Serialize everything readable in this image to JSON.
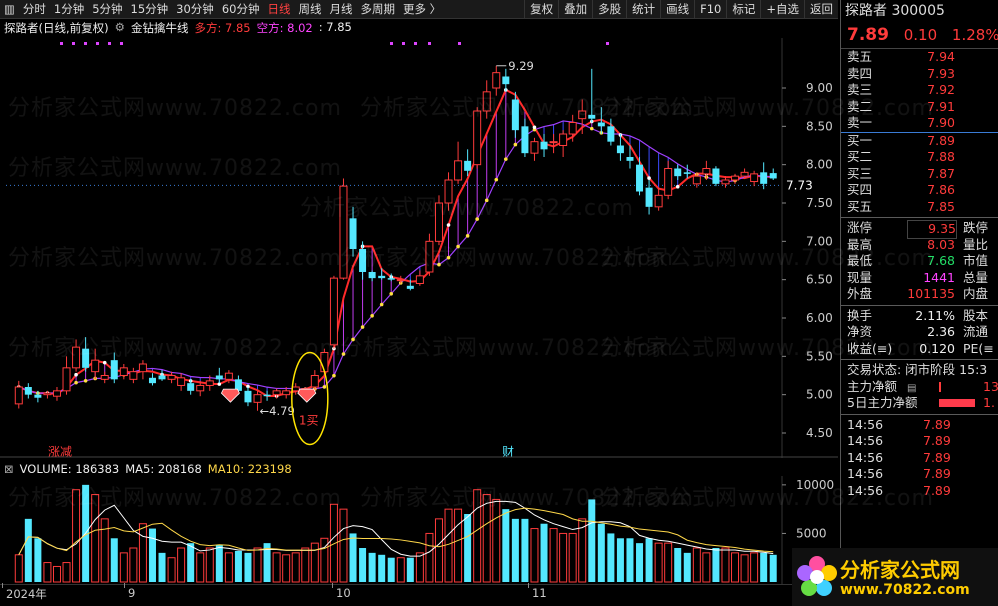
{
  "toolbar": {
    "items": [
      "分时",
      "1分钟",
      "5分钟",
      "15分钟",
      "30分钟",
      "60分钟",
      "日线",
      "周线",
      "月线",
      "多周期",
      "更多 〉"
    ],
    "active_index": 6,
    "right_items": [
      "复权",
      "叠加",
      "多股",
      "统计",
      "画线",
      "F10",
      "标记",
      "+自选",
      "返回"
    ]
  },
  "info": {
    "stock_label": "探路者(日线,前复权)",
    "indicator": "金钻擒牛线",
    "long_label": "多方:",
    "long_value": "7.85",
    "short_label": "空方:",
    "short_value": "8.02",
    "extra_value": ": 7.85"
  },
  "chart_data": {
    "type": "candlestick",
    "price_axis": {
      "min": 4.5,
      "max": 9.0,
      "ticks": [
        "9.00",
        "8.50",
        "8.00",
        "7.50",
        "7.00",
        "6.50",
        "6.00",
        "5.50",
        "5.00",
        "4.50"
      ]
    },
    "current_price_tag": "7.73",
    "high_annotation": "9.29",
    "low_annotation": "4.79",
    "buy_label": "1买",
    "event_labels": [
      "涨减",
      "财"
    ],
    "x_labels": [
      "2024年",
      "9",
      "10",
      "11"
    ],
    "candles": [
      [
        4.88,
        5.18,
        4.82,
        5.1
      ],
      [
        5.1,
        5.15,
        4.95,
        5.0
      ],
      [
        5.0,
        5.05,
        4.9,
        4.96
      ],
      [
        5.0,
        5.05,
        4.95,
        5.02
      ],
      [
        4.98,
        5.1,
        4.92,
        5.05
      ],
      [
        5.05,
        5.5,
        5.0,
        5.35
      ],
      [
        5.35,
        5.72,
        5.3,
        5.62
      ],
      [
        5.6,
        5.75,
        5.3,
        5.35
      ],
      [
        5.3,
        5.6,
        5.2,
        5.45
      ],
      [
        5.2,
        5.3,
        5.15,
        5.25
      ],
      [
        5.45,
        5.55,
        5.15,
        5.2
      ],
      [
        5.25,
        5.4,
        5.2,
        5.35
      ],
      [
        5.2,
        5.35,
        5.15,
        5.3
      ],
      [
        5.3,
        5.45,
        5.2,
        5.4
      ],
      [
        5.22,
        5.28,
        5.12,
        5.15
      ],
      [
        5.25,
        5.32,
        5.18,
        5.2
      ],
      [
        5.2,
        5.3,
        5.15,
        5.25
      ],
      [
        5.12,
        5.28,
        5.05,
        5.22
      ],
      [
        5.15,
        5.2,
        5.0,
        5.05
      ],
      [
        5.05,
        5.18,
        4.98,
        5.12
      ],
      [
        5.12,
        5.25,
        5.05,
        5.18
      ],
      [
        5.25,
        5.35,
        5.15,
        5.2
      ],
      [
        5.2,
        5.32,
        5.15,
        5.28
      ],
      [
        5.2,
        5.25,
        5.0,
        5.05
      ],
      [
        5.05,
        5.1,
        4.85,
        4.9
      ],
      [
        4.9,
        5.05,
        4.79,
        5.0
      ],
      [
        5.0,
        5.05,
        4.92,
        4.98
      ],
      [
        5.0,
        5.08,
        4.95,
        5.05
      ],
      [
        5.0,
        5.1,
        4.95,
        5.05
      ],
      [
        5.05,
        5.15,
        5.0,
        5.1
      ],
      [
        5.02,
        5.1,
        4.98,
        5.08
      ],
      [
        5.1,
        5.32,
        5.05,
        5.25
      ],
      [
        5.3,
        5.6,
        5.25,
        5.55
      ],
      [
        5.65,
        6.55,
        5.6,
        6.52
      ],
      [
        6.52,
        7.82,
        6.5,
        7.72
      ],
      [
        7.3,
        7.45,
        6.8,
        6.9
      ],
      [
        6.9,
        7.0,
        6.5,
        6.6
      ],
      [
        6.6,
        6.62,
        6.48,
        6.52
      ],
      [
        6.55,
        6.65,
        6.5,
        6.52
      ],
      [
        6.52,
        6.58,
        6.48,
        6.5
      ],
      [
        6.5,
        6.55,
        6.45,
        6.5
      ],
      [
        6.42,
        6.5,
        6.36,
        6.38
      ],
      [
        6.45,
        6.62,
        6.42,
        6.55
      ],
      [
        6.6,
        7.1,
        6.55,
        7.0
      ],
      [
        7.0,
        7.6,
        6.95,
        7.5
      ],
      [
        7.5,
        7.9,
        7.4,
        7.8
      ],
      [
        7.8,
        8.3,
        7.75,
        8.05
      ],
      [
        8.05,
        8.2,
        7.85,
        7.92
      ],
      [
        8.0,
        8.75,
        7.95,
        8.7
      ],
      [
        8.7,
        9.1,
        8.6,
        8.95
      ],
      [
        9.0,
        9.29,
        8.9,
        9.2
      ],
      [
        9.15,
        9.25,
        8.95,
        9.05
      ],
      [
        8.85,
        8.95,
        8.35,
        8.45
      ],
      [
        8.5,
        8.6,
        8.1,
        8.15
      ],
      [
        8.15,
        8.35,
        8.05,
        8.3
      ],
      [
        8.3,
        8.4,
        8.1,
        8.2
      ],
      [
        8.3,
        8.4,
        8.15,
        8.3
      ],
      [
        8.25,
        8.45,
        8.1,
        8.4
      ],
      [
        8.4,
        8.65,
        8.3,
        8.55
      ],
      [
        8.6,
        8.85,
        8.4,
        8.7
      ],
      [
        8.65,
        9.25,
        8.55,
        8.6
      ],
      [
        8.55,
        8.75,
        8.4,
        8.5
      ],
      [
        8.5,
        8.6,
        8.25,
        8.3
      ],
      [
        8.25,
        8.4,
        8.05,
        8.15
      ],
      [
        8.1,
        8.25,
        7.95,
        8.05
      ],
      [
        8.0,
        8.1,
        7.6,
        7.65
      ],
      [
        7.7,
        7.8,
        7.35,
        7.45
      ],
      [
        7.45,
        7.7,
        7.4,
        7.6
      ],
      [
        7.6,
        8.05,
        7.55,
        7.95
      ],
      [
        7.95,
        8.0,
        7.8,
        7.85
      ],
      [
        7.9,
        8.0,
        7.82,
        7.88
      ],
      [
        7.75,
        7.9,
        7.7,
        7.85
      ],
      [
        7.88,
        8.05,
        7.8,
        7.95
      ],
      [
        7.95,
        7.98,
        7.72,
        7.75
      ],
      [
        7.75,
        7.85,
        7.7,
        7.8
      ],
      [
        7.8,
        7.88,
        7.75,
        7.85
      ],
      [
        7.85,
        7.95,
        7.82,
        7.9
      ],
      [
        7.78,
        7.92,
        7.72,
        7.88
      ],
      [
        7.9,
        8.03,
        7.68,
        7.75
      ],
      [
        7.89,
        7.95,
        7.8,
        7.82
      ]
    ],
    "volume": {
      "label": "VOLUME: 186383",
      "ma5": "MA5: 208168",
      "ma10": "MA10: 223198",
      "axis_ticks": [
        "10000",
        "5000"
      ],
      "values": [
        2.8,
        6.5,
        4.5,
        2.0,
        1.6,
        2.0,
        9.5,
        10.0,
        9.0,
        6.5,
        4.5,
        3.0,
        3.5,
        6.0,
        5.5,
        3.0,
        2.5,
        3.5,
        4.0,
        3.0,
        3.5,
        3.8,
        3.0,
        3.2,
        3.0,
        3.5,
        4.0,
        3.0,
        2.8,
        3.0,
        3.5,
        4.0,
        4.5,
        8.0,
        7.5,
        5.0,
        3.5,
        3.0,
        2.8,
        2.5,
        2.5,
        2.5,
        3.0,
        5.0,
        6.5,
        7.5,
        7.5,
        7.0,
        9.5,
        9.0,
        8.5,
        7.5,
        6.5,
        6.5,
        5.5,
        6.0,
        5.5,
        5.0,
        5.0,
        6.5,
        8.5,
        6.0,
        5.0,
        4.5,
        4.5,
        4.0,
        4.5,
        4.0,
        4.0,
        3.5,
        3.0,
        3.5,
        3.0,
        3.5,
        3.5,
        3.0,
        2.8,
        3.0,
        3.0,
        2.8
      ]
    }
  },
  "right_panel": {
    "title": "探路者 300005",
    "price": "7.89",
    "change": "0.10",
    "change_pct": "1.28%",
    "asks": [
      {
        "label": "卖五",
        "price": "7.94"
      },
      {
        "label": "卖四",
        "price": "7.93"
      },
      {
        "label": "卖三",
        "price": "7.92"
      },
      {
        "label": "卖二",
        "price": "7.91"
      },
      {
        "label": "卖一",
        "price": "7.90"
      }
    ],
    "bids": [
      {
        "label": "买一",
        "price": "7.89"
      },
      {
        "label": "买二",
        "price": "7.88"
      },
      {
        "label": "买三",
        "price": "7.87"
      },
      {
        "label": "买四",
        "price": "7.86"
      },
      {
        "label": "买五",
        "price": "7.85"
      }
    ],
    "stats1": [
      {
        "label": "涨停",
        "value": "9.35",
        "label2": "跌停"
      },
      {
        "label": "最高",
        "value": "8.03",
        "label2": "量比"
      },
      {
        "label": "最低",
        "value": "7.68",
        "label2": "市值"
      },
      {
        "label": "现量",
        "value": "1441",
        "label2": "总量"
      },
      {
        "label": "外盘",
        "value": "101135",
        "label2": "内盘"
      }
    ],
    "stats2": [
      {
        "label": "换手",
        "value": "2.11%",
        "label2": "股本"
      },
      {
        "label": "净资",
        "value": "2.36",
        "label2": "流通"
      },
      {
        "label": "收益(≡)",
        "value": "0.120",
        "label2": "PE(≡"
      }
    ],
    "trade_status": "交易状态: 闭市阶段 15:3",
    "main_net_label": "主力净额",
    "main_net_value": "13",
    "main5_label": "5日主力净额",
    "main5_value": "1.",
    "ticks": [
      {
        "time": "14:56",
        "price": "7.89"
      },
      {
        "time": "14:56",
        "price": "7.89"
      },
      {
        "time": "14:56",
        "price": "7.89"
      },
      {
        "time": "14:56",
        "price": "7.89"
      },
      {
        "time": "14:56",
        "price": "7.89"
      }
    ]
  },
  "watermark": "分析家公式网www.70822.com",
  "logo": {
    "title": "分析家公式网",
    "url": "www.70822.com"
  }
}
